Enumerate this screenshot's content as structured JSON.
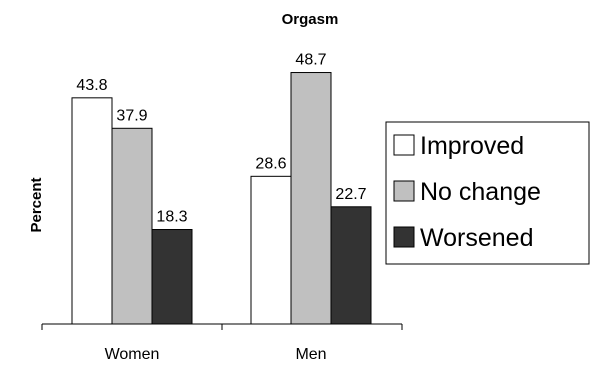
{
  "chart_data": {
    "type": "bar",
    "title": "Orgasm",
    "ylabel": "Percent",
    "xlabel": "",
    "categories": [
      "Women",
      "Men"
    ],
    "series": [
      {
        "name": "Improved",
        "values": [
          43.8,
          28.6
        ],
        "color": "#ffffff"
      },
      {
        "name": "No change",
        "values": [
          37.9,
          48.7
        ],
        "color": "#c0c0c0"
      },
      {
        "name": "Worsened",
        "values": [
          18.3,
          22.7
        ],
        "color": "#333333"
      }
    ],
    "ylim": [
      0,
      55
    ],
    "grid": false,
    "legend_position": "right"
  }
}
